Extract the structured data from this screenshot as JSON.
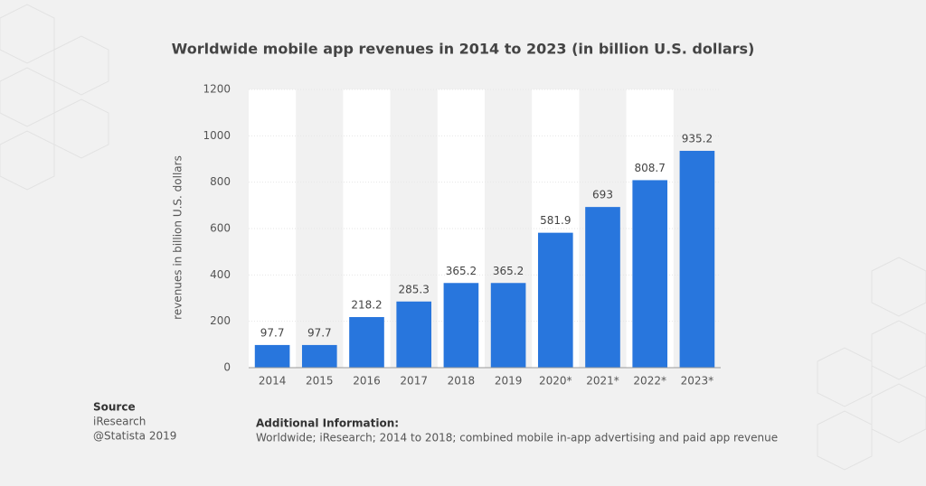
{
  "chart_data": {
    "type": "bar",
    "title": "Worldwide mobile app revenues in 2014 to 2023 (in billion U.S. dollars)",
    "y_label": "revenues in billion U.S. dollars",
    "categories": [
      "2014",
      "2015",
      "2016",
      "2017",
      "2018",
      "2019",
      "2020*",
      "2021*",
      "2022*",
      "2023*"
    ],
    "values": [
      97.7,
      97.7,
      218.2,
      285.3,
      365.2,
      365.2,
      581.9,
      693,
      808.7,
      935.2
    ],
    "color": "#2876dd",
    "ylim": [
      0,
      1200
    ],
    "yticks": [
      0,
      200,
      400,
      600,
      800,
      1000,
      1200
    ],
    "grid": true
  },
  "source": {
    "heading": "Source",
    "lines": [
      "iResearch",
      "@Statista 2019"
    ]
  },
  "additional_info": {
    "heading": "Additional Information:",
    "text": "Worldwide; iResearch; 2014 to 2018; combined mobile in-app advertising and paid app revenue"
  }
}
